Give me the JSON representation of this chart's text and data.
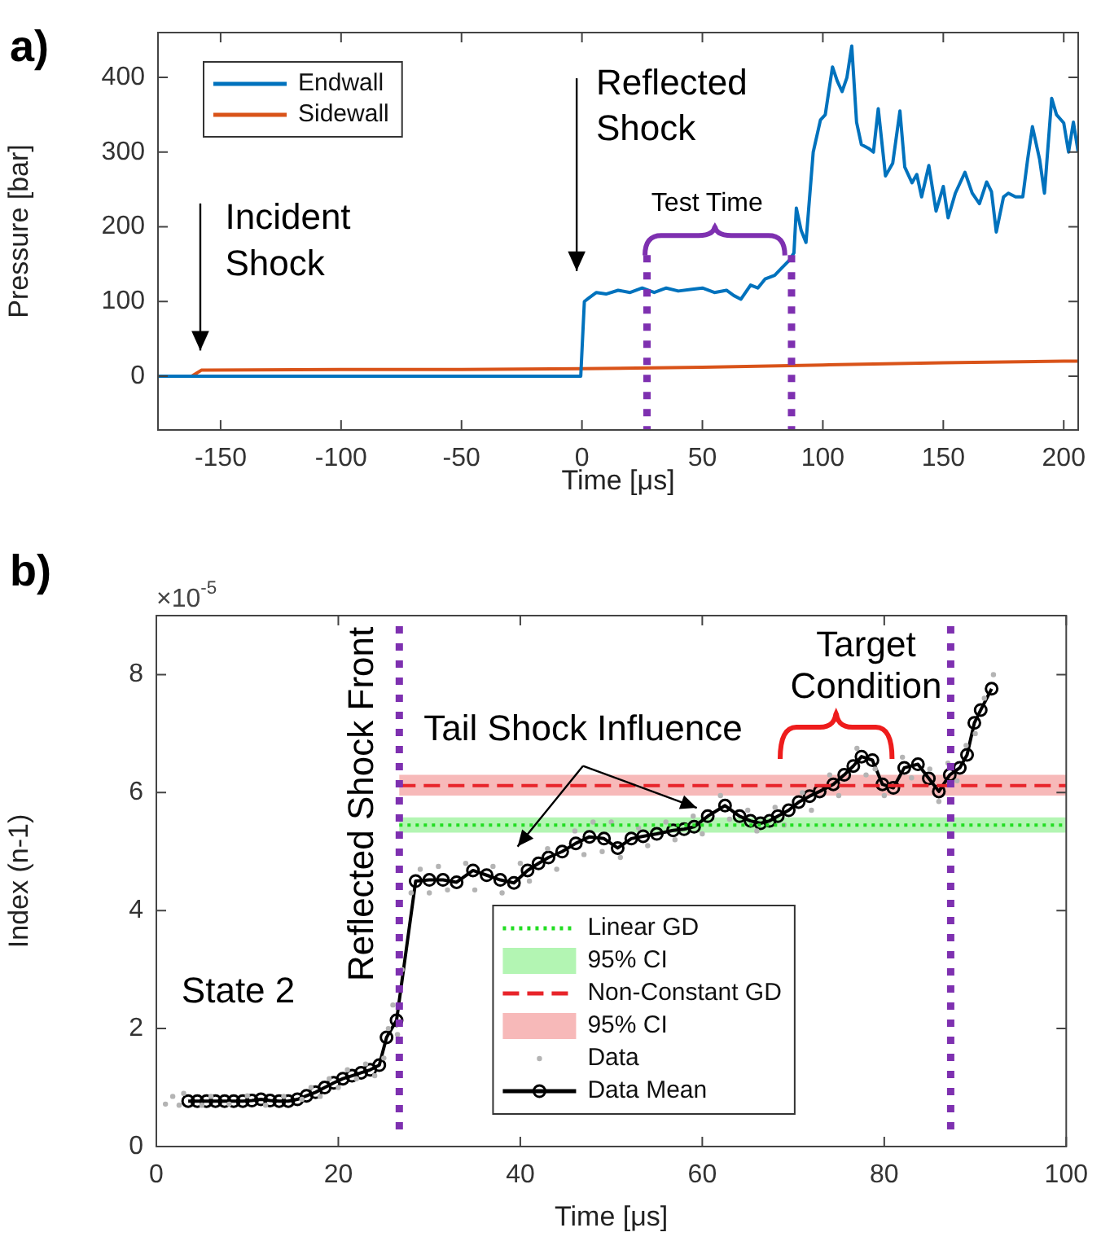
{
  "chart_data": [
    {
      "type": "line",
      "title": "a)",
      "xlabel": "Time [μs]",
      "ylabel": "Pressure [bar]",
      "xlim": [
        -176,
        206
      ],
      "xticks": [
        -150,
        -100,
        -50,
        0,
        50,
        100,
        150,
        200
      ],
      "ylim": [
        -72,
        460
      ],
      "yticks": [
        0,
        100,
        200,
        300,
        400
      ],
      "legend": "top left",
      "series": [
        {
          "name": "Endwall",
          "color": "#0072bd",
          "x": [
            -176,
            -160,
            -100,
            -50,
            -0.5,
            1,
            3,
            6,
            10,
            15,
            20,
            25,
            30,
            35,
            40,
            45,
            50,
            55,
            60,
            63,
            66,
            70,
            73,
            76,
            80,
            83,
            86,
            88,
            89,
            91,
            93,
            96,
            99,
            101,
            104,
            106,
            108,
            110,
            112,
            114,
            116,
            119,
            121,
            123,
            126,
            129,
            132,
            134,
            137,
            139,
            141,
            144,
            147,
            150,
            152,
            155,
            159,
            162,
            165,
            168,
            170,
            172,
            175,
            177,
            180,
            183,
            185,
            187,
            190,
            192,
            195,
            197,
            200,
            202,
            204,
            206
          ],
          "values": [
            0,
            0,
            0,
            0,
            0,
            100,
            105,
            112,
            110,
            115,
            112,
            118,
            112,
            118,
            114,
            116,
            118,
            112,
            115,
            108,
            103,
            122,
            118,
            130,
            135,
            145,
            155,
            165,
            225,
            195,
            179,
            300,
            343,
            350,
            414,
            395,
            381,
            400,
            442,
            340,
            310,
            305,
            300,
            358,
            268,
            285,
            355,
            280,
            259,
            270,
            240,
            282,
            221,
            254,
            212,
            245,
            273,
            245,
            231,
            260,
            247,
            193,
            240,
            245,
            240,
            240,
            290,
            334,
            290,
            245,
            372,
            350,
            339,
            300,
            340,
            300
          ]
        },
        {
          "name": "Sidewall",
          "color": "#d95319",
          "x": [
            -176,
            -162,
            -158,
            -100,
            -50,
            0,
            50,
            100,
            150,
            200,
            206
          ],
          "values": [
            0,
            0,
            8,
            9,
            9,
            10,
            12,
            15,
            18,
            20,
            20
          ]
        }
      ],
      "ref_lines": [
        {
          "axis": "x",
          "value": 27,
          "color": "#7e30b0",
          "line_style": "dotted"
        },
        {
          "axis": "x",
          "value": 87,
          "color": "#7e30b0",
          "line_style": "dotted"
        }
      ],
      "annotations": [
        "Incident\nShock",
        "Reflected\nShock",
        "Test Time"
      ]
    },
    {
      "type": "line",
      "title": "b)",
      "xlabel": "Time [μs]",
      "ylabel": "Index (n-1)",
      "xlim": [
        0,
        100
      ],
      "xticks": [
        0,
        20,
        40,
        60,
        80,
        100
      ],
      "ylim": [
        0,
        9
      ],
      "yticks": [
        0,
        2,
        4,
        6,
        8
      ],
      "legend": "bottom",
      "series": [
        {
          "name": "Linear GD",
          "color": "#22dd22",
          "line_style": "dotted",
          "x": [
            26.7,
            100
          ],
          "values": [
            5.45,
            5.45
          ]
        },
        {
          "name": "Non-Constant GD",
          "color": "#e8242a",
          "line_style": "dashed",
          "x": [
            26.7,
            100
          ],
          "values": [
            6.12,
            6.12
          ]
        },
        {
          "name": "Data",
          "type": "scatter",
          "marker": "circle",
          "color": "#b4b4b4",
          "x": [
            1,
            1.8,
            2.5,
            3,
            5,
            6,
            8,
            10,
            12,
            14,
            16,
            17,
            18,
            19,
            20,
            21,
            22,
            23,
            24,
            25,
            25.5,
            26,
            26.5,
            27,
            28,
            29,
            30,
            31,
            32,
            34,
            35,
            37,
            38,
            40,
            41,
            43,
            44,
            46,
            47,
            48,
            49,
            50,
            51,
            53,
            54,
            56,
            57,
            59,
            60,
            62,
            63,
            65,
            66,
            68,
            69,
            71,
            72,
            74,
            75,
            77,
            78,
            79,
            80,
            82,
            83,
            85,
            86,
            87,
            88,
            89,
            90,
            91,
            92
          ],
          "values": [
            0.72,
            0.85,
            0.7,
            0.9,
            0.7,
            0.85,
            0.72,
            0.86,
            0.7,
            0.85,
            0.8,
            1.0,
            0.85,
            1.15,
            1.0,
            1.3,
            1.15,
            1.4,
            1.2,
            1.5,
            2.0,
            2.4,
            1.9,
            3.0,
            4.3,
            4.7,
            4.3,
            4.75,
            4.35,
            4.8,
            4.35,
            4.75,
            4.3,
            4.8,
            4.5,
            5.05,
            4.7,
            5.35,
            4.95,
            5.5,
            5.0,
            5.5,
            4.9,
            5.4,
            5.1,
            5.5,
            5.2,
            5.6,
            5.3,
            5.95,
            5.55,
            5.7,
            5.35,
            5.75,
            5.45,
            6.0,
            5.7,
            6.3,
            5.95,
            6.75,
            6.3,
            6.4,
            5.95,
            6.6,
            6.25,
            6.4,
            5.85,
            6.5,
            6.2,
            6.8,
            7.0,
            7.6,
            8.0
          ]
        },
        {
          "name": "Data Mean",
          "marker": "circle",
          "color": "#000000",
          "x": [
            3.5,
            4.5,
            5.5,
            6.5,
            7.5,
            8.5,
            9.5,
            10.5,
            11.5,
            12.5,
            13.5,
            14.5,
            15.5,
            16.5,
            17.5,
            18.5,
            19.5,
            20.5,
            21.5,
            22.5,
            23.5,
            24.5,
            25.3,
            26.4,
            28.5,
            30,
            31.5,
            33,
            34.8,
            36.3,
            37.8,
            39.3,
            40.8,
            42,
            43.1,
            44.6,
            46.1,
            47.6,
            49.2,
            50.7,
            52.2,
            53.5,
            55,
            56.8,
            58,
            59.1,
            60.6,
            62.5,
            64.1,
            65.3,
            66.4,
            67.4,
            68.3,
            69.5,
            70.6,
            71.8,
            72.9,
            74.4,
            75.6,
            76.6,
            77.5,
            78.7,
            79.8,
            81,
            82.2,
            83.7,
            84.9,
            86,
            87.2,
            88.3,
            89.1,
            89.9,
            90.6,
            91.8
          ],
          "values": [
            0.77,
            0.77,
            0.77,
            0.77,
            0.77,
            0.77,
            0.77,
            0.78,
            0.8,
            0.78,
            0.77,
            0.77,
            0.8,
            0.86,
            0.92,
            1.0,
            1.08,
            1.15,
            1.2,
            1.25,
            1.3,
            1.38,
            1.85,
            2.14,
            4.5,
            4.52,
            4.52,
            4.48,
            4.68,
            4.6,
            4.52,
            4.47,
            4.68,
            4.8,
            4.9,
            5.0,
            5.14,
            5.25,
            5.22,
            5.06,
            5.22,
            5.26,
            5.3,
            5.36,
            5.38,
            5.42,
            5.6,
            5.78,
            5.6,
            5.52,
            5.48,
            5.52,
            5.6,
            5.7,
            5.84,
            5.94,
            6.02,
            6.14,
            6.3,
            6.45,
            6.61,
            6.55,
            6.14,
            6.08,
            6.42,
            6.48,
            6.24,
            6.02,
            6.3,
            6.42,
            6.64,
            7.18,
            7.4,
            7.76
          ]
        }
      ],
      "bands": [
        {
          "axis": "y",
          "from": 5.32,
          "to": 5.58,
          "label": "95% CI",
          "color": "#b3f5b3"
        },
        {
          "axis": "y",
          "from": 5.95,
          "to": 6.3,
          "label": "95% CI",
          "color": "#f7b9b9"
        }
      ],
      "ref_lines": [
        {
          "axis": "x",
          "value": 26.7,
          "label": "Reflected Shock Front",
          "color": "#7e30b0",
          "line_style": "dotted"
        },
        {
          "axis": "x",
          "value": 87.3,
          "color": "#7e30b0",
          "line_style": "dotted"
        }
      ],
      "annotations": [
        "×10$^{-5}$",
        "State 2",
        "Tail Shock Influence",
        "Target\nCondition"
      ]
    }
  ]
}
